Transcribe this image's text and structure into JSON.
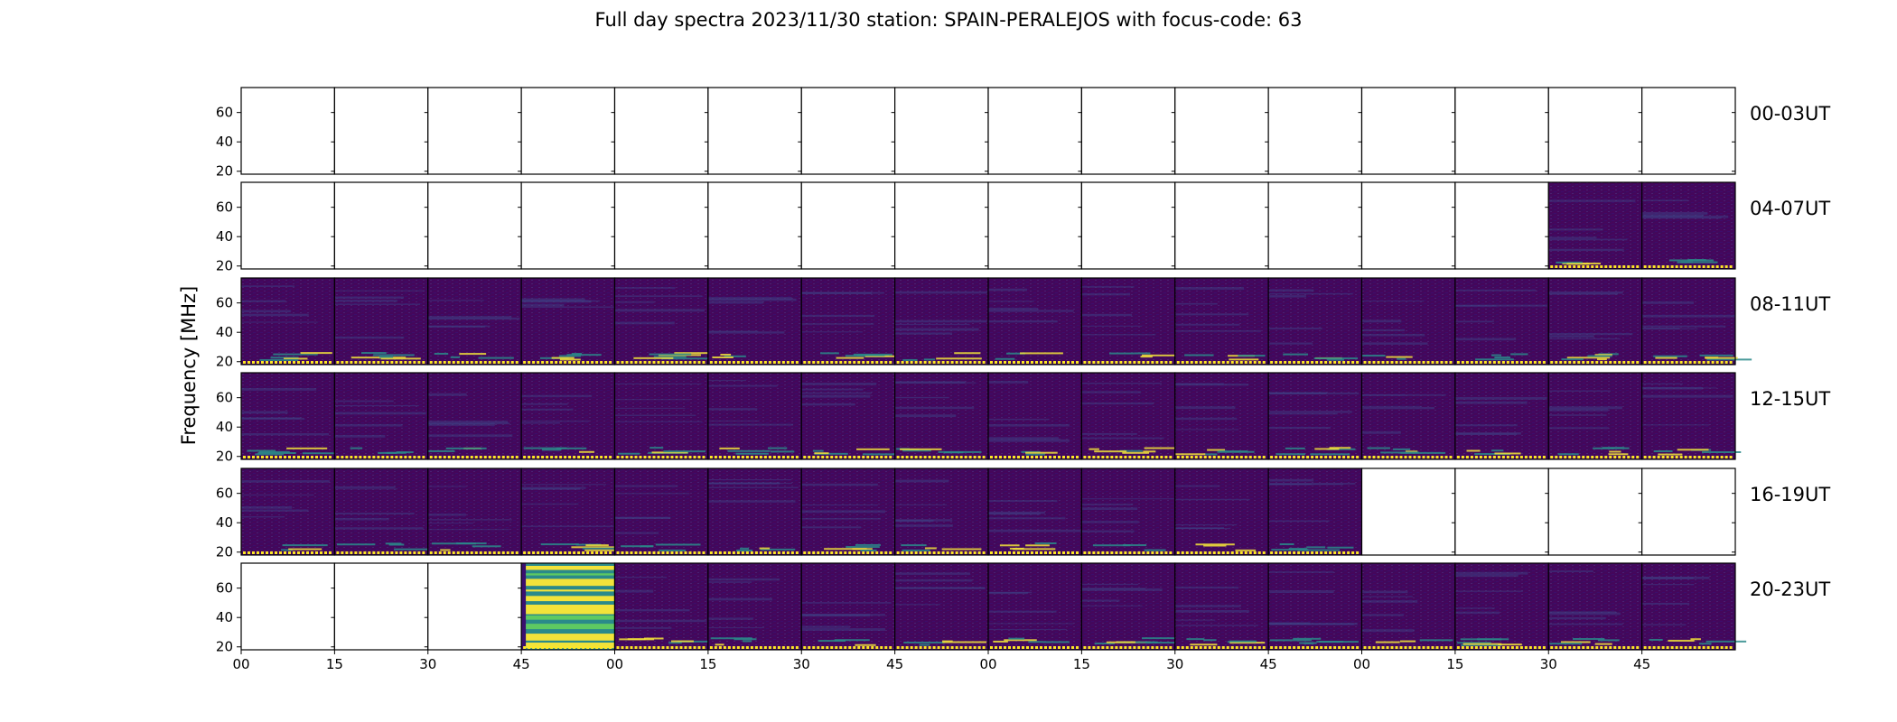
{
  "chart_data": {
    "type": "heatmap",
    "title": "Full day spectra 2023/11/30 station: SPAIN-PERALEJOS with focus-code: 63",
    "ylabel": "Frequency [MHz]",
    "xlabel": "",
    "ylim": [
      18,
      77
    ],
    "y_ticks": [
      "20",
      "40",
      "60"
    ],
    "x_tick_labels": [
      "00",
      "15",
      "30",
      "45",
      "00",
      "15",
      "30",
      "45",
      "00",
      "15",
      "30",
      "45",
      "00",
      "15",
      "30",
      "45"
    ],
    "panels_per_row": 16,
    "panel_minutes": 15,
    "colormap": "viridis",
    "colors": {
      "background": "#44075b",
      "mid": "#2a8a8a",
      "high": "#f2e33a",
      "empty": "#ffffff",
      "marker": "#fde725"
    },
    "rows": [
      {
        "label": "00-03UT",
        "panels": [
          0,
          0,
          0,
          0,
          0,
          0,
          0,
          0,
          0,
          0,
          0,
          0,
          0,
          0,
          0,
          0
        ]
      },
      {
        "label": "04-07UT",
        "panels": [
          0,
          0,
          0,
          0,
          0,
          0,
          0,
          0,
          0,
          0,
          0,
          0,
          0,
          0,
          1,
          1
        ]
      },
      {
        "label": "08-11UT",
        "panels": [
          1,
          1,
          1,
          1,
          1,
          1,
          1,
          1,
          1,
          1,
          1,
          1,
          1,
          1,
          1,
          1
        ]
      },
      {
        "label": "12-15UT",
        "panels": [
          1,
          1,
          1,
          1,
          1,
          1,
          1,
          1,
          1,
          1,
          1,
          1,
          1,
          1,
          1,
          1
        ]
      },
      {
        "label": "16-19UT",
        "panels": [
          1,
          1,
          1,
          1,
          1,
          1,
          1,
          1,
          1,
          1,
          1,
          1,
          0,
          0,
          0,
          0
        ]
      },
      {
        "label": "20-23UT",
        "panels": [
          0,
          0,
          0,
          2,
          1,
          1,
          1,
          1,
          1,
          1,
          1,
          1,
          1,
          1,
          1,
          1
        ]
      }
    ]
  }
}
